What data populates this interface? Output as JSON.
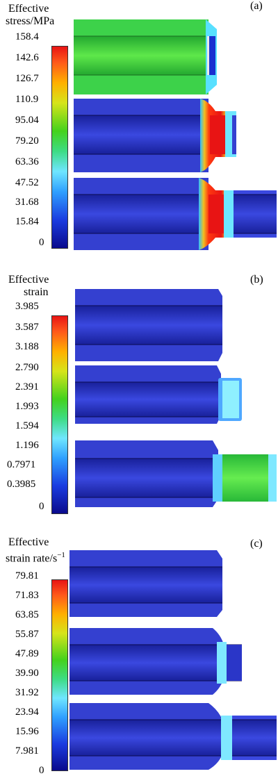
{
  "panels": [
    {
      "label": "(a)",
      "title_line1": "Effective",
      "title_line2": "stress/MPa",
      "ticks": [
        "158.4",
        "142.6",
        "126.7",
        "110.9",
        "95.04",
        "79.20",
        "63.36",
        "47.52",
        "31.68",
        "15.84",
        "0"
      ]
    },
    {
      "label": "(b)",
      "title_line1": "Effective",
      "title_line2": "strain",
      "ticks": [
        "3.985",
        "3.587",
        "3.188",
        "2.790",
        "2.391",
        "1.993",
        "1.594",
        "1.196",
        "0.7971",
        "0.3985",
        "0"
      ]
    },
    {
      "label": "(c)",
      "title_line1": "Effective",
      "title_line2": "strain rate/s",
      "title_sup": "−1",
      "ticks": [
        "79.81",
        "71.83",
        "63.85",
        "55.87",
        "47.89",
        "39.90",
        "31.92",
        "23.94",
        "15.96",
        "7.981",
        "0"
      ]
    }
  ],
  "colors": {
    "colormap": [
      "#0a0a8c",
      "#1a3ce0",
      "#2fa0ff",
      "#6fe6ff",
      "#3ddc84",
      "#44d21c",
      "#d6e41a",
      "#ffb000",
      "#ff5a1a",
      "#e81414"
    ],
    "blue_body": "#3440d0",
    "green_body": "#38d24a"
  }
}
